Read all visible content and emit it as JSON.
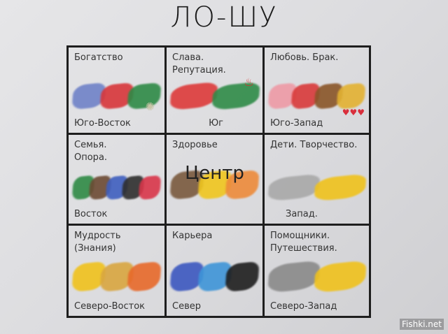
{
  "title": "ЛО-ШУ",
  "cells": [
    {
      "label": "Богатство",
      "direction": "Юго-Восток",
      "colors": [
        "#6f82c8",
        "#d8363a",
        "#2e8a46"
      ],
      "extra": "sparkle-icon"
    },
    {
      "label": "Слава.\nРепутация.",
      "direction": "Юг",
      "colors": [
        "#dd3a3a",
        "#2f8b48"
      ],
      "extra": "fire-icon"
    },
    {
      "label": "Любовь. Брак.",
      "direction": "Юго-Запад",
      "colors": [
        "#ee9aa6",
        "#d93a3a",
        "#8a5528",
        "#e3b232"
      ],
      "extra": "hearts-icon"
    },
    {
      "label": "Семья.\nОпора.",
      "direction": "Восток",
      "colors": [
        "#2f8a45",
        "#6c4a33",
        "#3f5fbf",
        "#2e2e2e",
        "#d9364a"
      ]
    },
    {
      "label": "Здоровье",
      "center_word": "Центр",
      "direction": "",
      "colors": [
        "#7a5a3e",
        "#f0c61e",
        "#ed8b3a"
      ]
    },
    {
      "label": "Дети. Творчество.",
      "direction": "Запад.",
      "colors": [
        "#a9a9a9",
        "#f0c21c"
      ]
    },
    {
      "label": "Мудрость\n(Знания)",
      "direction": "Северо-Восток",
      "colors": [
        "#f0c21c",
        "#d9a640",
        "#e8692a"
      ]
    },
    {
      "label": "Карьера",
      "direction": "Север",
      "colors": [
        "#3c58c0",
        "#3e95d8",
        "#1e1e1e"
      ]
    },
    {
      "label": "Помощники.\nПутешествия.",
      "direction": "Северо-Запад",
      "colors": [
        "#8a8a8a",
        "#f0c21c"
      ]
    }
  ],
  "watermark": "Fishki.net"
}
